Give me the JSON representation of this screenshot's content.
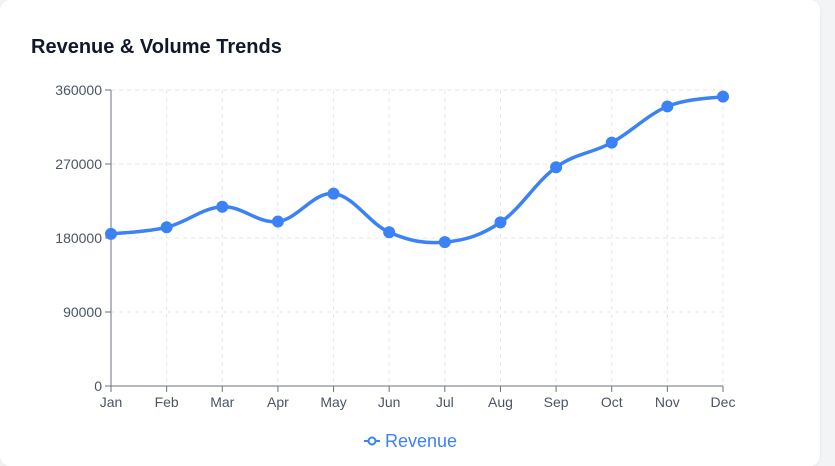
{
  "chart_data": {
    "type": "line",
    "title": "Revenue & Volume Trends",
    "xlabel": "",
    "ylabel": "",
    "categories": [
      "Jan",
      "Feb",
      "Mar",
      "Apr",
      "May",
      "Jun",
      "Jul",
      "Aug",
      "Sep",
      "Oct",
      "Nov",
      "Dec"
    ],
    "series": [
      {
        "name": "Revenue",
        "values": [
          185000,
          193000,
          218000,
          200000,
          234000,
          187000,
          175000,
          199000,
          266000,
          296000,
          340000,
          352000
        ]
      }
    ],
    "ylim": [
      0,
      360000
    ],
    "yticks": [
      "0",
      "90000",
      "180000",
      "270000",
      "360000"
    ],
    "grid": true,
    "legend_position": "bottom",
    "colors": {
      "series": "#3b82f6",
      "grid": "#e5e7eb",
      "axis": "#6b7280"
    }
  }
}
